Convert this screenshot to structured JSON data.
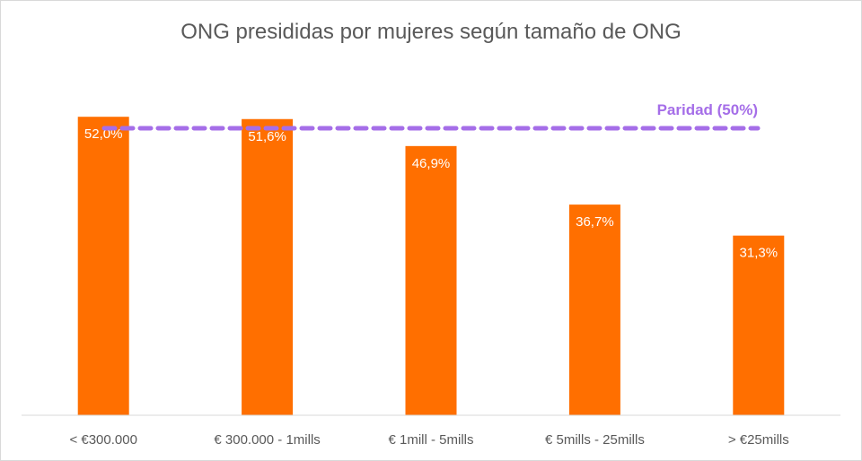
{
  "chart_data": {
    "type": "bar",
    "title": "ONG presididas por mujeres según tamaño de ONG",
    "categories": [
      "< €300.000",
      "€ 300.000 - 1mills",
      "€ 1mill - 5mills",
      "€ 5mills - 25mills",
      "> €25mills"
    ],
    "values": [
      52.0,
      51.6,
      46.9,
      36.7,
      31.3
    ],
    "data_labels": [
      "52,0%",
      "51,6%",
      "46,9%",
      "36,7%",
      "31,3%"
    ],
    "reference_line": {
      "value": 50,
      "label": "Paridad (50%)"
    },
    "xlabel": "",
    "ylabel": "",
    "ylim": [
      0,
      72
    ],
    "grid": false,
    "colors": {
      "bar": "#ff6f00",
      "reference": "#a56ee8",
      "label": "#ffffff",
      "axis": "#d9d9d9",
      "tick": "#595959"
    }
  }
}
